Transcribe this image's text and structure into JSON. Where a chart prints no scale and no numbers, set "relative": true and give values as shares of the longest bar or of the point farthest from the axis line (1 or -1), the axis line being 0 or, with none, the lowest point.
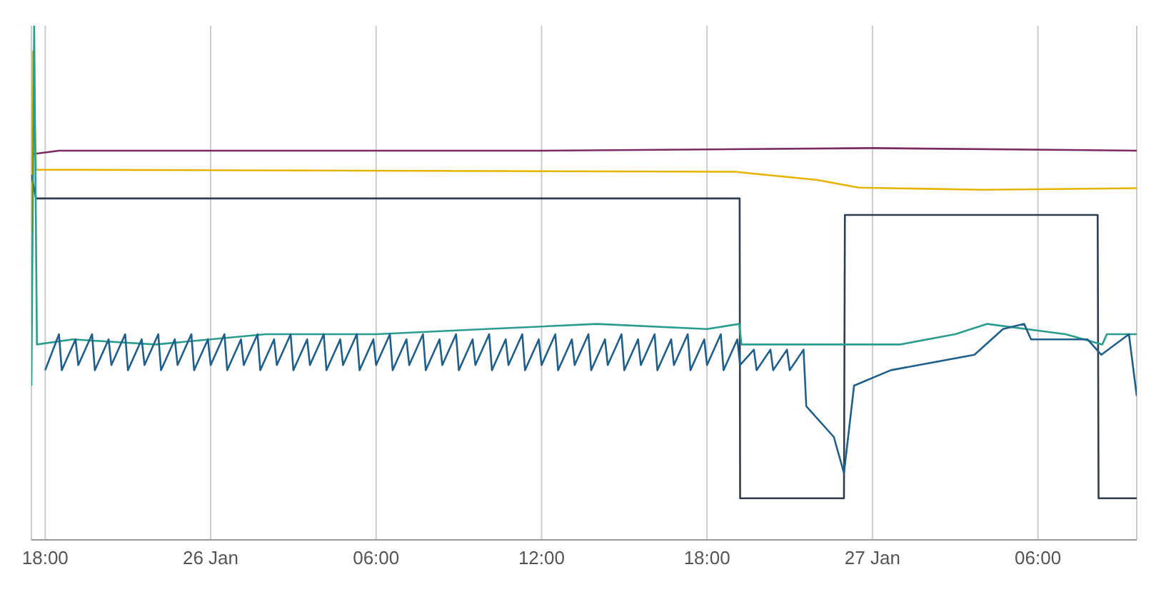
{
  "chart_data": {
    "type": "line",
    "relative": true,
    "grid": "x",
    "marker": "none",
    "line_style": "solid",
    "xlim": [
      "--01-25T17:30",
      "--01-27T09:35"
    ],
    "xticks": [
      {
        "value": "--01-25T18:00",
        "label": "18:00"
      },
      {
        "value": "--01-26T00:00",
        "label": "26 Jan"
      },
      {
        "value": "--01-26T06:00",
        "label": "06:00"
      },
      {
        "value": "--01-26T12:00",
        "label": "12:00"
      },
      {
        "value": "--01-26T18:00",
        "label": "18:00"
      },
      {
        "value": "--01-27T00:00",
        "label": "27 Jan"
      },
      {
        "value": "--01-27T06:00",
        "label": "06:00"
      }
    ],
    "series": [
      {
        "color": "#7b2a62",
        "x": [
          "--01-25T17:30",
          "--01-25T18:30",
          "--01-26T12:00",
          "--01-27T00:00",
          "--01-27T09:35"
        ],
        "values": [
          0.75,
          0.757,
          0.757,
          0.762,
          0.757
        ]
      },
      {
        "color": "#e6b400",
        "x": [
          "--01-25T17:30",
          "--01-25T17:33",
          "--01-25T17:40",
          "--01-26T19:00",
          "--01-26T22:00",
          "--01-26T23:30",
          "--01-27T04:00",
          "--01-27T09:35"
        ],
        "values": [
          0.6,
          0.95,
          0.72,
          0.716,
          0.7,
          0.685,
          0.681,
          0.684
        ]
      },
      {
        "color": "#2f3e4e",
        "x": [
          "--01-25T17:30",
          "--01-25T17:40",
          "--01-26T19:11",
          "--01-26T19:12",
          "--01-26T22:58",
          "--01-26T23:00",
          "--01-27T08:10",
          "--01-27T08:12",
          "--01-27T09:35"
        ],
        "values": [
          0.71,
          0.664,
          0.664,
          0.081,
          0.081,
          0.632,
          0.632,
          0.081,
          0.081
        ]
      },
      {
        "color": "#2a9d8f",
        "x": [
          "--01-25T17:30",
          "--01-25T17:36",
          "--01-25T17:42",
          "--01-25T19:00",
          "--01-25T22:00",
          "--01-26T02:00",
          "--01-26T06:00",
          "--01-26T10:00",
          "--01-26T14:00",
          "--01-26T18:00",
          "--01-26T19:10",
          "--01-26T19:15",
          "--01-27T01:00",
          "--01-27T03:00",
          "--01-27T04:10",
          "--01-27T07:00",
          "--01-27T08:20",
          "--01-27T08:30",
          "--01-27T09:35"
        ],
        "values": [
          0.3,
          1,
          0.38,
          0.39,
          0.38,
          0.4,
          0.4,
          0.41,
          0.42,
          0.41,
          0.42,
          0.38,
          0.38,
          0.4,
          0.42,
          0.4,
          0.38,
          0.4,
          0.4
        ]
      },
      {
        "color": "#1f5f8b",
        "x": [
          "--01-25T18:00",
          "--01-25T18:30",
          "--01-25T18:36",
          "--01-25T19:06",
          "--01-25T19:12",
          "--01-25T19:42",
          "--01-25T19:48",
          "--01-25T20:18",
          "--01-25T20:24",
          "--01-25T20:54",
          "--01-25T21:00",
          "--01-25T21:30",
          "--01-25T21:36",
          "--01-25T22:06",
          "--01-25T22:12",
          "--01-25T22:42",
          "--01-25T22:48",
          "--01-25T23:18",
          "--01-25T23:24",
          "--01-25T23:54",
          "--01-26T00:00",
          "--01-26T00:30",
          "--01-26T00:36",
          "--01-26T01:06",
          "--01-26T01:12",
          "--01-26T01:42",
          "--01-26T01:48",
          "--01-26T02:18",
          "--01-26T02:24",
          "--01-26T02:54",
          "--01-26T03:00",
          "--01-26T03:30",
          "--01-26T03:36",
          "--01-26T04:06",
          "--01-26T04:12",
          "--01-26T04:42",
          "--01-26T04:48",
          "--01-26T05:18",
          "--01-26T05:24",
          "--01-26T05:54",
          "--01-26T06:00",
          "--01-26T06:30",
          "--01-26T06:36",
          "--01-26T07:06",
          "--01-26T07:12",
          "--01-26T07:42",
          "--01-26T07:48",
          "--01-26T08:18",
          "--01-26T08:24",
          "--01-26T08:54",
          "--01-26T09:00",
          "--01-26T09:30",
          "--01-26T09:36",
          "--01-26T10:06",
          "--01-26T10:12",
          "--01-26T10:42",
          "--01-26T10:48",
          "--01-26T11:18",
          "--01-26T11:24",
          "--01-26T11:54",
          "--01-26T12:00",
          "--01-26T12:30",
          "--01-26T12:36",
          "--01-26T13:06",
          "--01-26T13:12",
          "--01-26T13:42",
          "--01-26T13:48",
          "--01-26T14:18",
          "--01-26T14:24",
          "--01-26T14:54",
          "--01-26T15:00",
          "--01-26T15:30",
          "--01-26T15:36",
          "--01-26T16:06",
          "--01-26T16:12",
          "--01-26T16:42",
          "--01-26T16:48",
          "--01-26T17:18",
          "--01-26T17:24",
          "--01-26T17:54",
          "--01-26T18:00",
          "--01-26T18:30",
          "--01-26T18:36",
          "--01-26T19:06",
          "--01-26T19:12",
          "--01-26T19:42",
          "--01-26T19:48",
          "--01-26T20:18",
          "--01-26T20:24",
          "--01-26T20:54",
          "--01-26T21:00",
          "--01-26T21:30",
          "--01-26T21:36",
          "--01-26T22:36",
          "--01-26T22:58",
          "--01-26T23:20",
          "--01-27T00:40",
          "--01-27T03:42",
          "--01-27T04:44",
          "--01-27T05:30",
          "--01-27T05:45",
          "--01-27T07:48",
          "--01-27T08:18",
          "--01-27T09:18",
          "--01-27T09:35"
        ],
        "values": [
          0.33,
          0.4,
          0.33,
          0.39,
          0.34,
          0.4,
          0.33,
          0.39,
          0.34,
          0.4,
          0.33,
          0.39,
          0.34,
          0.4,
          0.33,
          0.39,
          0.34,
          0.4,
          0.33,
          0.39,
          0.34,
          0.4,
          0.33,
          0.39,
          0.34,
          0.4,
          0.33,
          0.39,
          0.34,
          0.4,
          0.33,
          0.39,
          0.34,
          0.4,
          0.33,
          0.39,
          0.34,
          0.4,
          0.33,
          0.39,
          0.34,
          0.4,
          0.33,
          0.39,
          0.34,
          0.4,
          0.33,
          0.39,
          0.34,
          0.4,
          0.33,
          0.39,
          0.34,
          0.4,
          0.33,
          0.39,
          0.34,
          0.4,
          0.33,
          0.39,
          0.34,
          0.4,
          0.33,
          0.39,
          0.34,
          0.4,
          0.33,
          0.39,
          0.34,
          0.4,
          0.33,
          0.39,
          0.34,
          0.4,
          0.33,
          0.39,
          0.34,
          0.4,
          0.33,
          0.39,
          0.34,
          0.4,
          0.33,
          0.39,
          0.34,
          0.37,
          0.33,
          0.37,
          0.33,
          0.37,
          0.33,
          0.37,
          0.26,
          0.2,
          0.13,
          0.3,
          0.33,
          0.36,
          0.41,
          0.42,
          0.39,
          0.39,
          0.36,
          0.4,
          0.28
        ]
      }
    ]
  }
}
